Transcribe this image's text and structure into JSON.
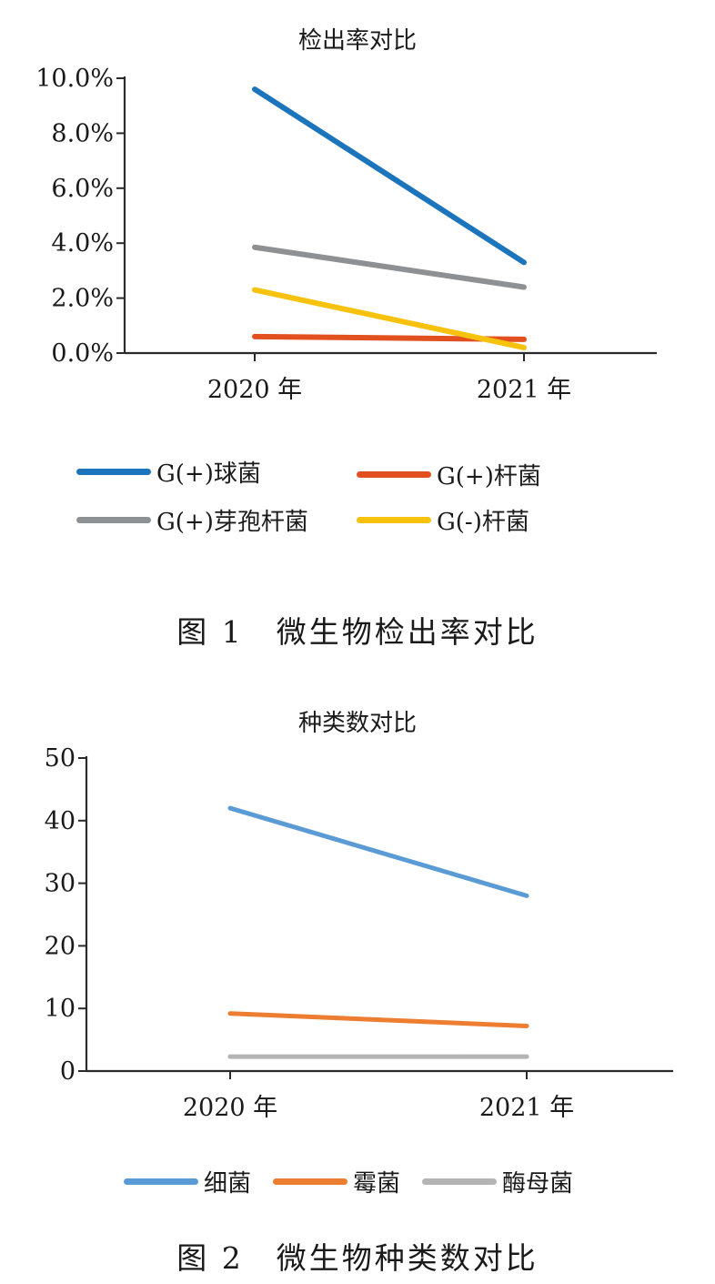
{
  "chart_data": [
    {
      "type": "line",
      "title": "检出率对比",
      "categories": [
        "2020 年",
        "2021 年"
      ],
      "y_ticks": [
        "0.0%",
        "2.0%",
        "4.0%",
        "6.0%",
        "8.0%",
        "10.0%"
      ],
      "ylim": [
        0,
        10
      ],
      "series": [
        {
          "name": "G(+)球菌",
          "values": [
            9.6,
            3.3
          ],
          "color": "#1c75bc"
        },
        {
          "name": "G(+)杆菌",
          "values": [
            0.6,
            0.5
          ],
          "color": "#e2501f"
        },
        {
          "name": "G(+)芽孢杆菌",
          "values": [
            3.85,
            2.4
          ],
          "color": "#8e9194"
        },
        {
          "name": "G(-)杆菌",
          "values": [
            2.3,
            0.2
          ],
          "color": "#f6c20e"
        }
      ],
      "legend": "bottom",
      "caption": "图 1　微生物检出率对比"
    },
    {
      "type": "line",
      "title": "种类数对比",
      "categories": [
        "2020 年",
        "2021 年"
      ],
      "y_ticks": [
        "0",
        "10",
        "20",
        "30",
        "40",
        "50"
      ],
      "ylim": [
        0,
        50
      ],
      "series": [
        {
          "name": "细菌",
          "values": [
            42,
            28
          ],
          "color": "#5b9bd5"
        },
        {
          "name": "霉菌",
          "values": [
            9.2,
            7.2
          ],
          "color": "#ed7d31"
        },
        {
          "name": "酶母菌",
          "values": [
            2.3,
            2.3
          ],
          "color": "#b4b4b4"
        }
      ],
      "legend": "bottom",
      "caption": "图 2　微生物种类数对比"
    }
  ]
}
